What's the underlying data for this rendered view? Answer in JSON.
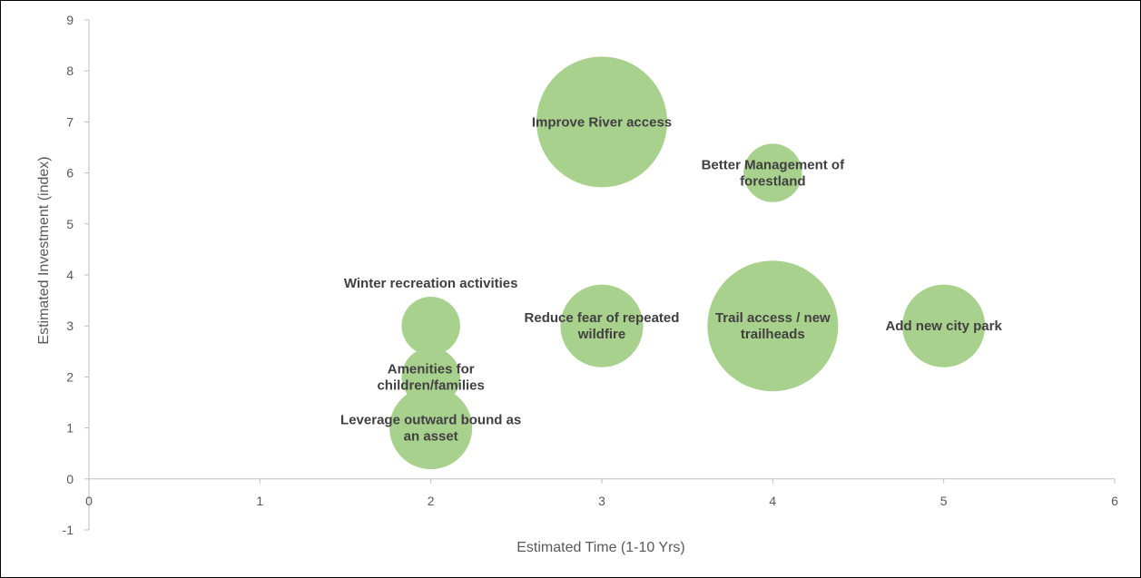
{
  "chart_data": {
    "type": "bubble",
    "title": "",
    "xlabel": "Estimated Time (1-10 Yrs)",
    "ylabel": "Estimated Investment (index)",
    "xlim": [
      0,
      6
    ],
    "ylim": [
      -1,
      9
    ],
    "xticks": [
      "0",
      "1",
      "2",
      "3",
      "4",
      "5",
      "6"
    ],
    "yticks": [
      "-1",
      "0",
      "1",
      "2",
      "3",
      "4",
      "5",
      "6",
      "7",
      "8",
      "9"
    ],
    "grid": false,
    "legend": "none",
    "bubble_color": "#a9d18e",
    "points": [
      {
        "label": [
          "Improve River access"
        ],
        "x": 3,
        "y": 7,
        "size": 10
      },
      {
        "label": [
          "Better Management of",
          "forestland"
        ],
        "x": 4,
        "y": 6,
        "size": 2
      },
      {
        "label": [
          "Winter recreation activities"
        ],
        "x": 2,
        "y": 3,
        "size": 2
      },
      {
        "label": [
          "Reduce fear of repeated",
          "wildfire"
        ],
        "x": 3,
        "y": 3,
        "size": 4
      },
      {
        "label": [
          "Trail access / new",
          "trailheads"
        ],
        "x": 4,
        "y": 3,
        "size": 10
      },
      {
        "label": [
          "Add new city park"
        ],
        "x": 5,
        "y": 3,
        "size": 4
      },
      {
        "label": [
          "Amenities for",
          "children/families"
        ],
        "x": 2,
        "y": 2,
        "size": 2
      },
      {
        "label": [
          "Leverage outward bound as",
          "an asset"
        ],
        "x": 2,
        "y": 1,
        "size": 4
      }
    ]
  }
}
